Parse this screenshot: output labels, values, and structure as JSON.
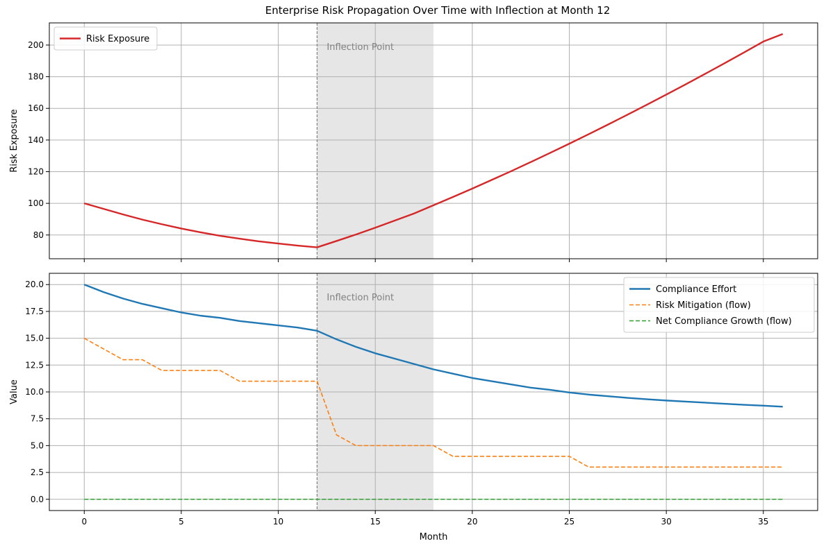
{
  "title": "Enterprise Risk Propagation Over Time with Inflection at Month 12",
  "chart_data": [
    {
      "type": "line",
      "ylabel": "Risk Exposure",
      "xlabel": "",
      "xlim": [
        -1.8,
        37.8
      ],
      "ylim": [
        65,
        214
      ],
      "xticks": [
        0,
        5,
        10,
        15,
        20,
        25,
        30,
        35
      ],
      "show_xtick_labels": false,
      "yticks": [
        80,
        100,
        120,
        140,
        160,
        180,
        200
      ],
      "ytick_labels": [
        "80",
        "100",
        "120",
        "140",
        "160",
        "180",
        "200"
      ],
      "grid": true,
      "legend": "upper-left",
      "inflection": {
        "x": 12,
        "shade_to": 18,
        "label": "Inflection Point"
      },
      "series": [
        {
          "name": "Risk Exposure",
          "color": "#d62728",
          "style": "solid",
          "x": [
            0,
            1,
            2,
            3,
            4,
            5,
            6,
            7,
            8,
            9,
            10,
            11,
            12,
            13,
            14,
            15,
            16,
            17,
            18,
            19,
            20,
            21,
            22,
            23,
            24,
            25,
            26,
            27,
            28,
            29,
            30,
            31,
            32,
            33,
            34,
            35,
            36
          ],
          "y": [
            100,
            96.5,
            93,
            89.7,
            86.8,
            84.1,
            81.7,
            79.5,
            77.7,
            76.0,
            74.6,
            73.3,
            72.2,
            76.2,
            80.3,
            84.6,
            89.1,
            93.6,
            98.8,
            104.0,
            109.3,
            114.8,
            120.3,
            126.0,
            131.8,
            137.7,
            143.7,
            149.8,
            156.0,
            162.3,
            168.7,
            175.2,
            181.8,
            188.5,
            195.3,
            202.2,
            207.0
          ]
        }
      ]
    },
    {
      "type": "line",
      "ylabel": "Value",
      "xlabel": "Month",
      "xlim": [
        -1.8,
        37.8
      ],
      "ylim": [
        -1.05,
        21.05
      ],
      "xticks": [
        0,
        5,
        10,
        15,
        20,
        25,
        30,
        35
      ],
      "xtick_labels": [
        "0",
        "5",
        "10",
        "15",
        "20",
        "25",
        "30",
        "35"
      ],
      "yticks": [
        0,
        2.5,
        5,
        7.5,
        10,
        12.5,
        15,
        17.5,
        20
      ],
      "ytick_labels": [
        "0.0",
        "2.5",
        "5.0",
        "7.5",
        "10.0",
        "12.5",
        "15.0",
        "17.5",
        "20.0"
      ],
      "grid": true,
      "legend": "upper-right",
      "inflection": {
        "x": 12,
        "shade_to": 18,
        "label": "Inflection Point"
      },
      "series": [
        {
          "name": "Compliance Effort",
          "color": "#1f77b4",
          "style": "solid",
          "x": [
            0,
            1,
            2,
            3,
            4,
            5,
            6,
            7,
            8,
            9,
            10,
            11,
            12,
            13,
            14,
            15,
            16,
            17,
            18,
            19,
            20,
            21,
            22,
            23,
            24,
            25,
            26,
            27,
            28,
            29,
            30,
            31,
            32,
            33,
            34,
            35,
            36
          ],
          "y": [
            20.0,
            19.3,
            18.7,
            18.2,
            17.8,
            17.4,
            17.1,
            16.9,
            16.6,
            16.4,
            16.2,
            16.0,
            15.7,
            14.9,
            14.2,
            13.6,
            13.1,
            12.6,
            12.1,
            11.7,
            11.3,
            11.0,
            10.7,
            10.4,
            10.2,
            9.95,
            9.75,
            9.6,
            9.45,
            9.32,
            9.2,
            9.1,
            9.0,
            8.9,
            8.8,
            8.72,
            8.62
          ]
        },
        {
          "name": "Risk Mitigation (flow)",
          "color": "#ff7f0e",
          "style": "dashed",
          "x": [
            0,
            1,
            2,
            3,
            4,
            5,
            6,
            7,
            8,
            9,
            10,
            11,
            12,
            13,
            14,
            15,
            16,
            17,
            18,
            19,
            20,
            21,
            22,
            23,
            24,
            25,
            26,
            27,
            28,
            29,
            30,
            31,
            32,
            33,
            34,
            35,
            36
          ],
          "y": [
            15,
            14,
            13,
            13,
            12,
            12,
            12,
            12,
            11,
            11,
            11,
            11,
            11,
            6,
            5,
            5,
            5,
            5,
            5,
            4,
            4,
            4,
            4,
            4,
            4,
            4,
            3,
            3,
            3,
            3,
            3,
            3,
            3,
            3,
            3,
            3,
            3
          ]
        },
        {
          "name": "Net Compliance Growth (flow)",
          "color": "#2ca02c",
          "style": "dashed",
          "x": [
            0,
            36
          ],
          "y": [
            0,
            0
          ]
        }
      ]
    }
  ]
}
